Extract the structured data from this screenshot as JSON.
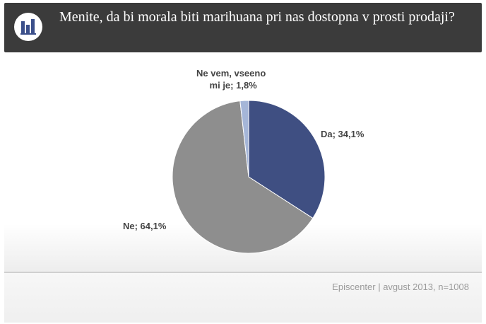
{
  "header": {
    "title": "Menite, da bi morala biti marihuana pri nas dostopna  v prosti prodaji?",
    "logo_icon": "bar-chart-icon"
  },
  "chart_data": {
    "type": "pie",
    "slices": [
      {
        "label": "Da",
        "value": 34.1,
        "display": "Da;  34,1%",
        "color": "#3f4f82"
      },
      {
        "label": "Ne",
        "value": 64.1,
        "display": "Ne; 64,1%",
        "color": "#8e8e8e"
      },
      {
        "label": "Ne vem, vseeno mi je",
        "value": 1.8,
        "display_line1": "Ne vem, vseeno",
        "display_line2": "mi je; 1,8%",
        "color": "#a5b6d8"
      }
    ]
  },
  "footer": {
    "source": "Episcenter   | avgust 2013, n=1008"
  }
}
